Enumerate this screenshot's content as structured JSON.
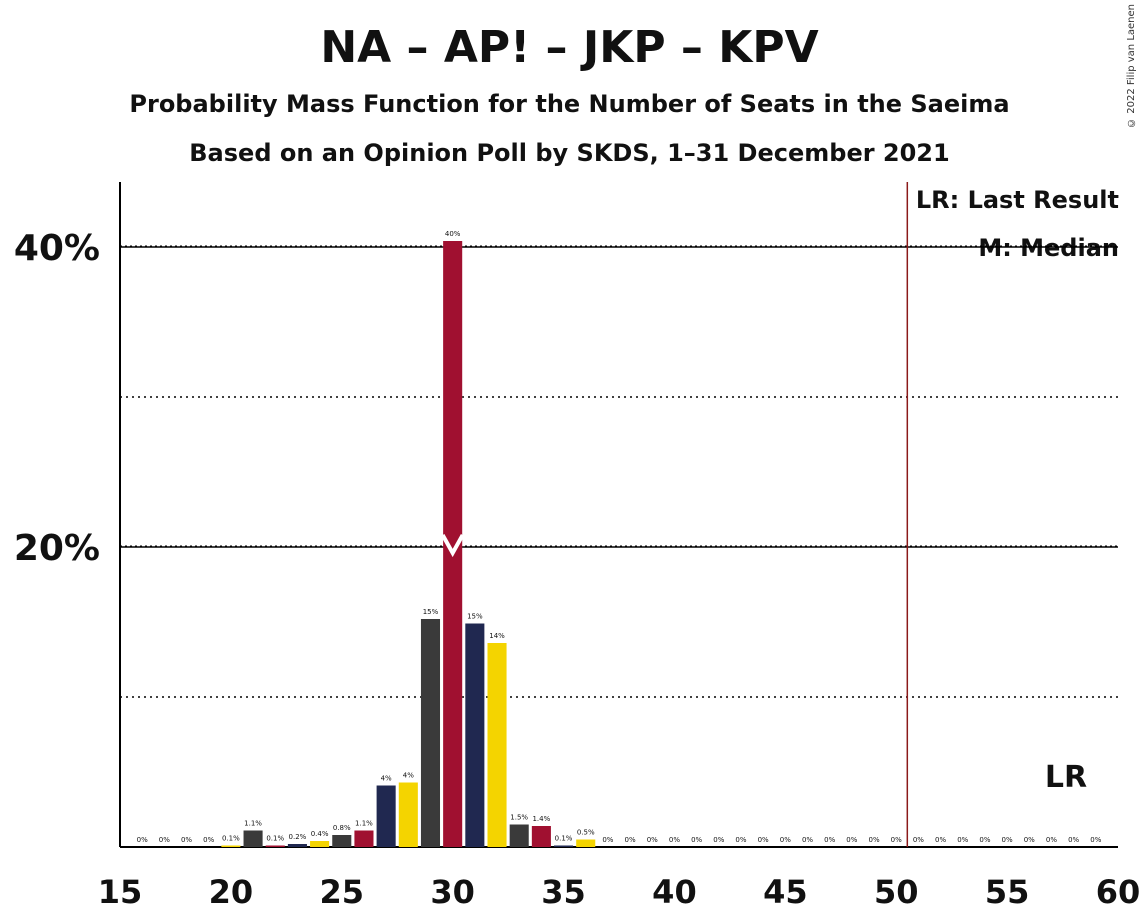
{
  "title": "NA – AP! – JKP – KPV",
  "subtitle": "Probability Mass Function for the Number of Seats in the Saeima",
  "subtitle2": "Based on an Opinion Poll by SKDS, 1–31 December 2021",
  "copyright": "© 2022 Filip van Laenen",
  "legend": {
    "lr": "LR: Last Result",
    "median": "M: Median"
  },
  "lr_label": "LR",
  "colors": {
    "navy": "#202850",
    "yellow": "#f4d400",
    "charcoal": "#3a3a3a",
    "crimson": "#a01030",
    "lr_line": "#8b1a1a"
  },
  "chart_data": {
    "type": "bar",
    "x": [
      16,
      17,
      18,
      19,
      20,
      21,
      22,
      23,
      24,
      25,
      26,
      27,
      28,
      29,
      30,
      31,
      32,
      33,
      34,
      35,
      36,
      37,
      38,
      39,
      40,
      41,
      42,
      43,
      44,
      45,
      46,
      47,
      48,
      49,
      50,
      51,
      52,
      53,
      54,
      55,
      56,
      57,
      58,
      59
    ],
    "values": [
      0,
      0,
      0,
      0,
      0.1,
      1.1,
      0.1,
      0.2,
      0.4,
      0.8,
      1.1,
      4.1,
      4.3,
      15.2,
      40.4,
      14.9,
      13.6,
      1.5,
      1.4,
      0.1,
      0.5,
      0,
      0,
      0,
      0,
      0,
      0,
      0,
      0,
      0,
      0,
      0,
      0,
      0,
      0,
      0,
      0,
      0,
      0,
      0,
      0,
      0,
      0,
      0
    ],
    "labels": [
      "0%",
      "0%",
      "0%",
      "0%",
      "0.1%",
      "1.1%",
      "0.1%",
      "0.2%",
      "0.4%",
      "0.8%",
      "1.1%",
      "4%",
      "4%",
      "15%",
      "40%",
      "15%",
      "14%",
      "1.5%",
      "1.4%",
      "0.1%",
      "0.5%",
      "0%",
      "0%",
      "0%",
      "0%",
      "0%",
      "0%",
      "0%",
      "0%",
      "0%",
      "0%",
      "0%",
      "0%",
      "0%",
      "0%",
      "0%",
      "0%",
      "0%",
      "0%",
      "0%",
      "0%",
      "0%",
      "0%",
      "0%"
    ],
    "bar_colors": [
      "yellow",
      "charcoal",
      "crimson",
      "navy",
      "yellow",
      "charcoal",
      "crimson",
      "navy",
      "yellow",
      "charcoal",
      "crimson",
      "navy",
      "yellow",
      "charcoal",
      "crimson",
      "navy",
      "yellow",
      "charcoal",
      "crimson",
      "navy",
      "yellow",
      "charcoal",
      "crimson",
      "navy",
      "yellow",
      "charcoal",
      "crimson",
      "navy",
      "yellow",
      "charcoal",
      "crimson",
      "navy",
      "yellow",
      "charcoal",
      "crimson",
      "navy",
      "yellow",
      "charcoal",
      "crimson",
      "navy",
      "yellow",
      "charcoal",
      "crimson",
      "navy"
    ],
    "xlim": [
      15,
      60
    ],
    "ylim": [
      0,
      44
    ],
    "x_ticks": [
      15,
      20,
      25,
      30,
      35,
      40,
      45,
      50,
      55,
      60
    ],
    "y_ticks_labeled": [
      20,
      40
    ],
    "y_tick_labels": [
      "20%",
      "40%"
    ],
    "y_ticks_dotted": [
      10,
      30
    ],
    "median": 30,
    "last_result": 51
  }
}
